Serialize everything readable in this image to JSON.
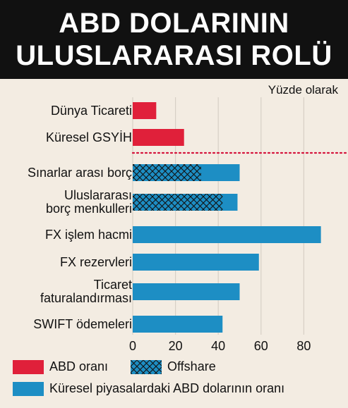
{
  "title_lines": [
    "ABD DOLARININ",
    "ULUSLARARASI ROLÜ"
  ],
  "unit_label": "Yüzde olarak",
  "colors": {
    "us_share": "#e0203a",
    "global_share": "#1d8ec4",
    "offshare_fill": "#1d8ec4",
    "offshare_hatch": "#111111",
    "background": "#f3ece2",
    "grid": "#d7d0c6",
    "divider": "#d5143c"
  },
  "chart_data": {
    "type": "bar",
    "orientation": "horizontal",
    "unit": "Yüzde olarak",
    "xlim": [
      0,
      90
    ],
    "xticks": [
      0,
      20,
      40,
      60,
      80
    ],
    "categories": [
      "Dünya Ticareti",
      "Küresel GSYİH",
      "Sınarlar arası borç",
      "Uluslararası borç menkulleri",
      "FX işlem hacmi",
      "FX rezervleri",
      "Ticaret faturalandırması",
      "SWIFT ödemeleri"
    ],
    "category_lines": [
      [
        "Dünya Ticareti"
      ],
      [
        "Küresel GSYİH"
      ],
      [
        "Sınarlar arası borç"
      ],
      [
        "Uluslararası",
        "borç menkulleri"
      ],
      [
        "FX işlem hacmi"
      ],
      [
        "FX rezervleri"
      ],
      [
        "Ticaret",
        "faturalandırması"
      ],
      [
        "SWIFT ödemeleri"
      ]
    ],
    "series": [
      {
        "name": "ABD oranı",
        "values": [
          11,
          24,
          null,
          null,
          null,
          null,
          null,
          null
        ]
      },
      {
        "name": "Küresel piyasalardaki ABD dolarının oranı",
        "values": [
          null,
          null,
          50,
          49,
          88,
          59,
          50,
          42
        ]
      },
      {
        "name": "Offshare",
        "values": [
          null,
          null,
          32,
          42,
          null,
          null,
          null,
          null
        ]
      }
    ],
    "grid": true,
    "legend_position": "bottom"
  },
  "legend": [
    {
      "label": "ABD oranı",
      "kind": "us"
    },
    {
      "label": "Offshare",
      "kind": "offshare"
    },
    {
      "label": "Küresel piyasalardaki ABD dolarının oranı",
      "kind": "global"
    }
  ]
}
